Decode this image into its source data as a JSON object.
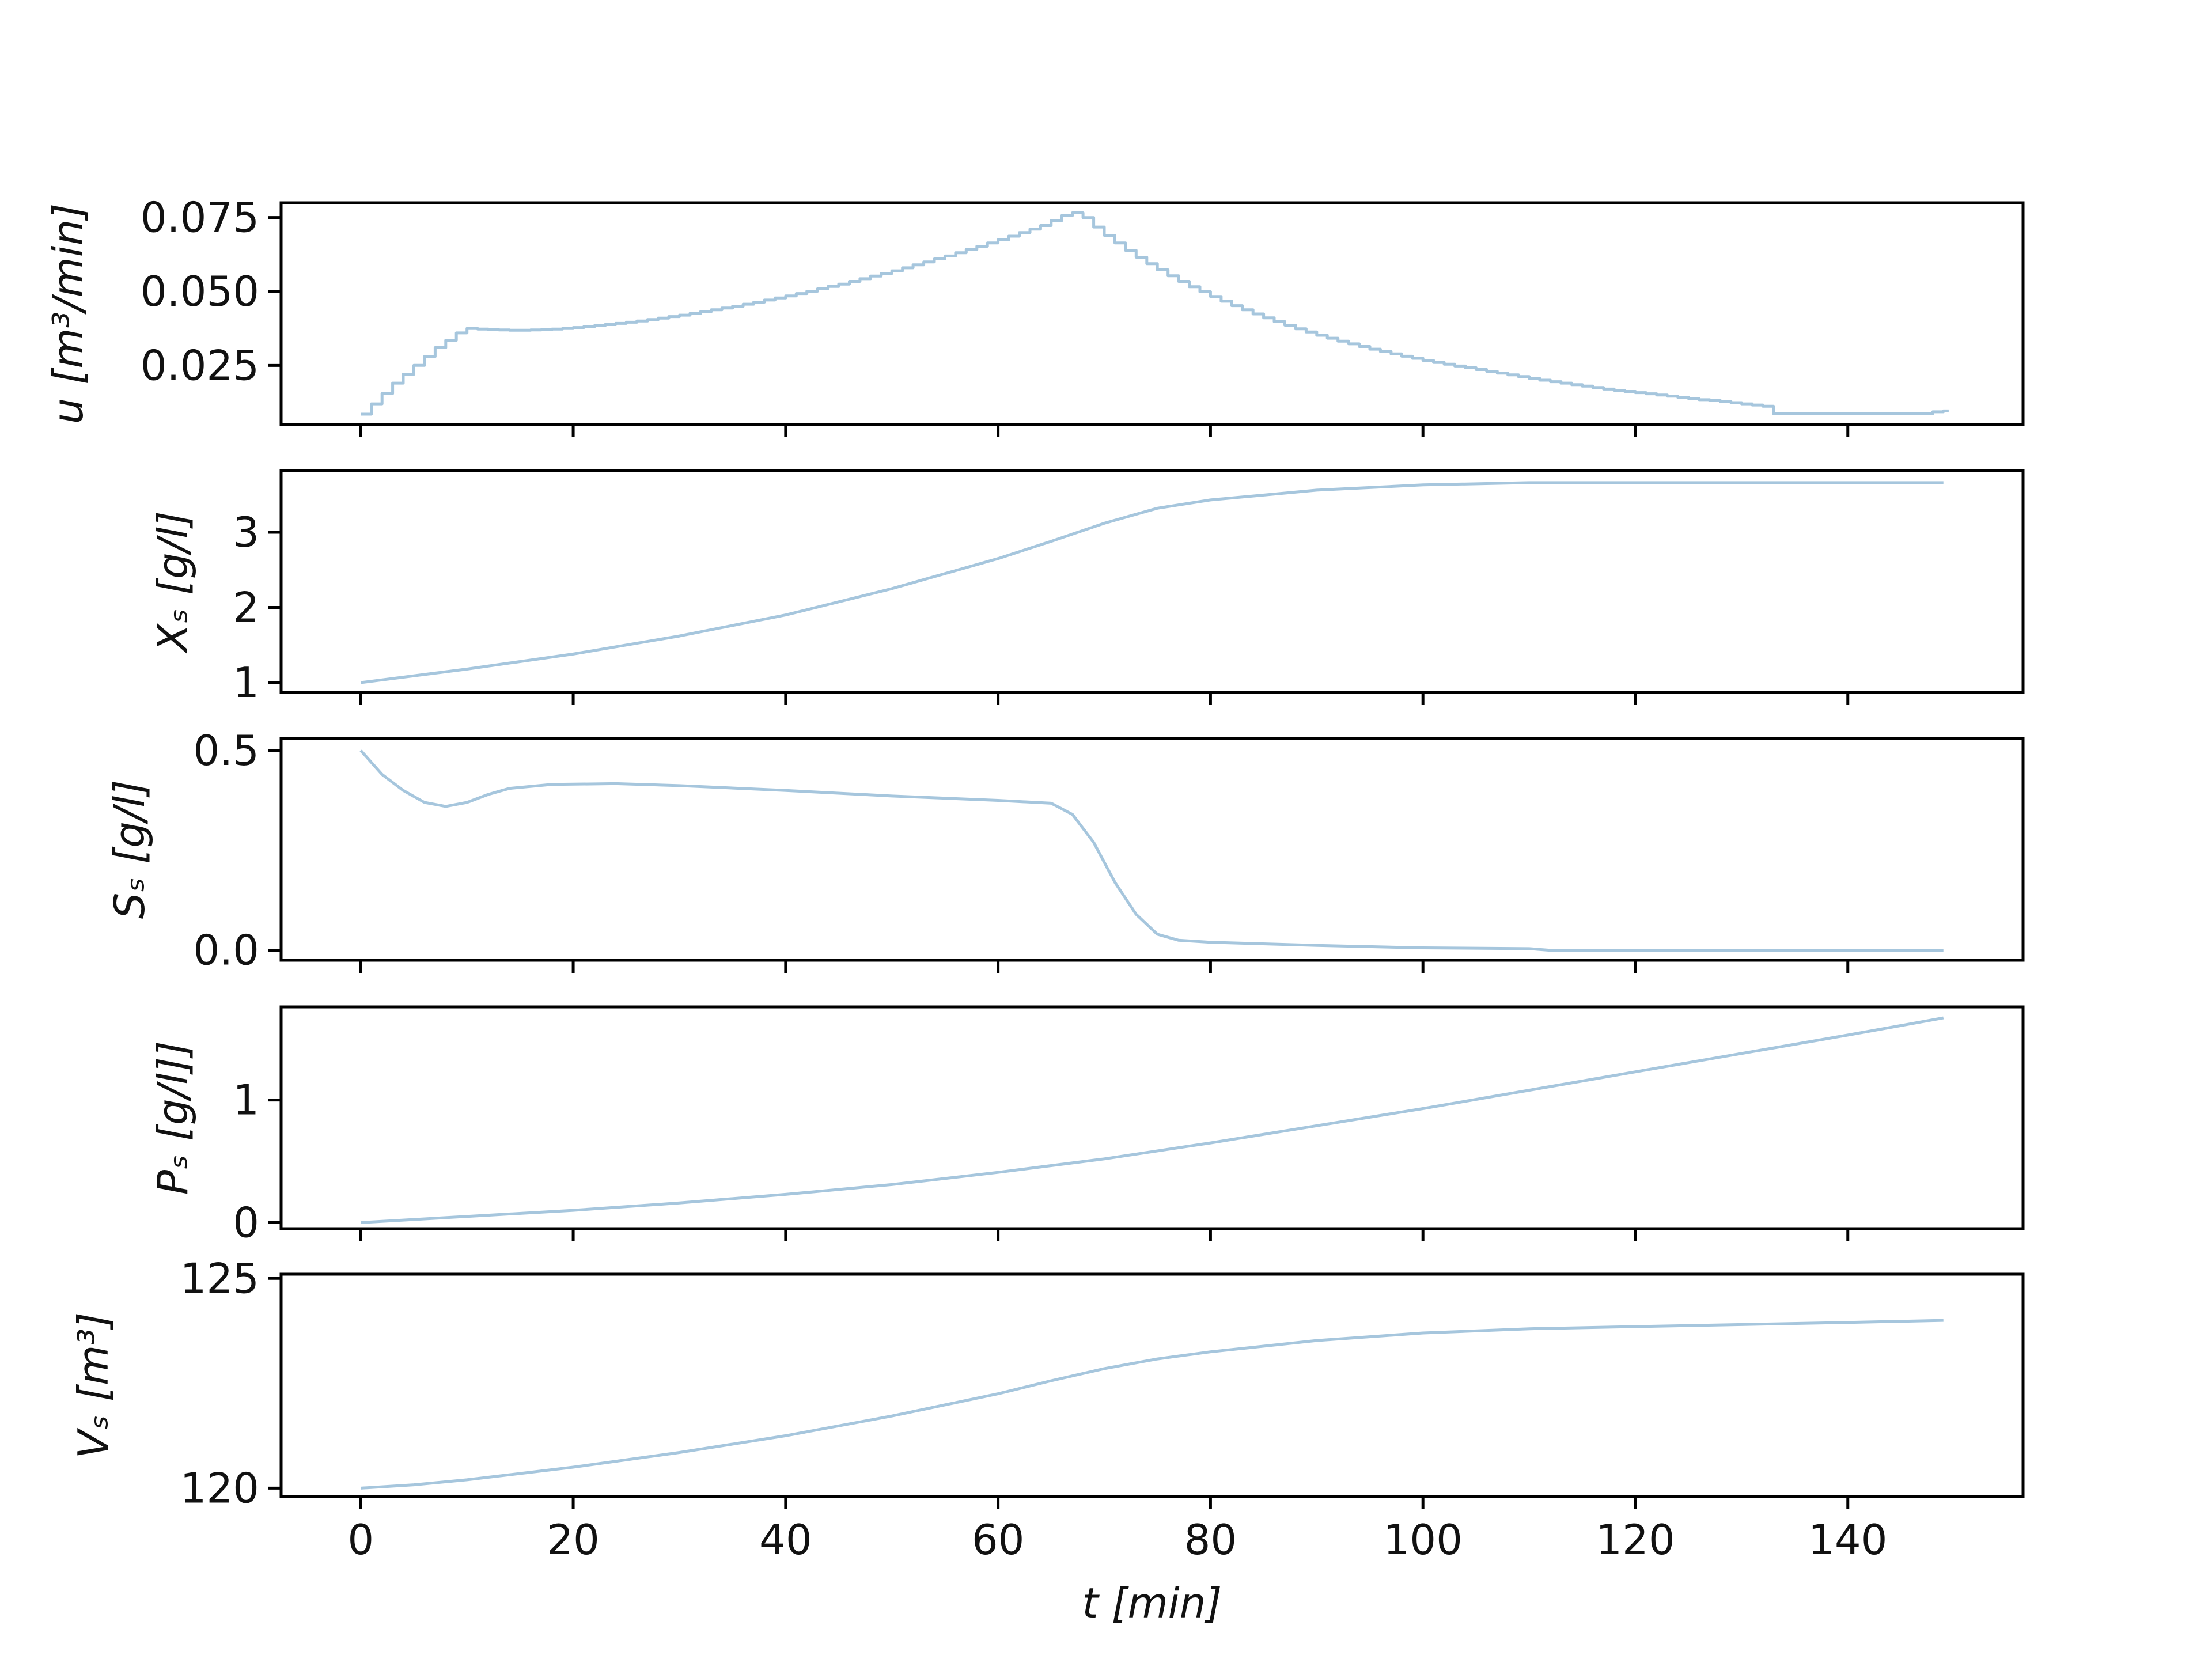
{
  "figure": {
    "line_color": "#a6c6dd",
    "background": "#ffffff",
    "frame_color": "#000000"
  },
  "chart_data": [
    {
      "type": "line",
      "step": true,
      "ylabel": "u [m³/min]",
      "xlim": [
        -7.5,
        156.5
      ],
      "ylim": [
        0.005,
        0.08
      ],
      "yticks": [
        0.025,
        0.05,
        0.075
      ],
      "ytick_labels": [
        "0.025",
        "0.050",
        "0.075"
      ],
      "series": [
        {
          "x": [
            0,
            1,
            2,
            3,
            4,
            5,
            6,
            7,
            8,
            9,
            10,
            11,
            12,
            13,
            14,
            15,
            16,
            17,
            18,
            19,
            20,
            21,
            22,
            23,
            24,
            25,
            26,
            27,
            28,
            29,
            30,
            31,
            32,
            33,
            34,
            35,
            36,
            37,
            38,
            39,
            40,
            41,
            42,
            43,
            44,
            45,
            46,
            47,
            48,
            49,
            50,
            51,
            52,
            53,
            54,
            55,
            56,
            57,
            58,
            59,
            60,
            61,
            62,
            63,
            64,
            65,
            66,
            67,
            68,
            69,
            70,
            71,
            72,
            73,
            74,
            75,
            76,
            77,
            78,
            79,
            80,
            81,
            82,
            83,
            84,
            85,
            86,
            87,
            88,
            89,
            90,
            91,
            92,
            93,
            94,
            95,
            96,
            97,
            98,
            99,
            100,
            101,
            102,
            103,
            104,
            105,
            106,
            107,
            108,
            109,
            110,
            111,
            112,
            113,
            114,
            115,
            116,
            117,
            118,
            119,
            120,
            121,
            122,
            123,
            124,
            125,
            126,
            127,
            128,
            129,
            130,
            131,
            132,
            133,
            134,
            135,
            136,
            137,
            138,
            139,
            140,
            141,
            142,
            143,
            144,
            145,
            146,
            147,
            148,
            149
          ],
          "values": [
            0.0085,
            0.012,
            0.0155,
            0.019,
            0.022,
            0.025,
            0.028,
            0.031,
            0.0335,
            0.036,
            0.0375,
            0.0373,
            0.0371,
            0.037,
            0.0369,
            0.0369,
            0.037,
            0.0371,
            0.0373,
            0.0375,
            0.0378,
            0.0381,
            0.0384,
            0.0388,
            0.0392,
            0.0396,
            0.04,
            0.0405,
            0.041,
            0.0415,
            0.042,
            0.0426,
            0.0432,
            0.0438,
            0.0444,
            0.045,
            0.0457,
            0.0464,
            0.0471,
            0.0478,
            0.0485,
            0.0493,
            0.0501,
            0.0509,
            0.0517,
            0.0525,
            0.0534,
            0.0543,
            0.0552,
            0.0561,
            0.057,
            0.058,
            0.059,
            0.06,
            0.061,
            0.062,
            0.0631,
            0.0642,
            0.0653,
            0.0664,
            0.0675,
            0.0687,
            0.0699,
            0.0711,
            0.0723,
            0.074,
            0.0757,
            0.0766,
            0.075,
            0.0718,
            0.069,
            0.0664,
            0.0639,
            0.0616,
            0.0594,
            0.0573,
            0.0553,
            0.0534,
            0.0516,
            0.0499,
            0.0483,
            0.0467,
            0.0452,
            0.0438,
            0.0424,
            0.0411,
            0.0398,
            0.0386,
            0.0374,
            0.0363,
            0.0352,
            0.0342,
            0.0332,
            0.0323,
            0.0314,
            0.0305,
            0.0297,
            0.0289,
            0.0281,
            0.0274,
            0.0267,
            0.026,
            0.0254,
            0.0248,
            0.0242,
            0.0236,
            0.023,
            0.0224,
            0.0218,
            0.0212,
            0.0206,
            0.02,
            0.0195,
            0.019,
            0.0185,
            0.018,
            0.0175,
            0.017,
            0.0166,
            0.0162,
            0.0158,
            0.0154,
            0.015,
            0.0146,
            0.0142,
            0.0138,
            0.0134,
            0.0131,
            0.0128,
            0.0124,
            0.012,
            0.0116,
            0.0112,
            0.0087,
            0.0086,
            0.0087,
            0.0087,
            0.0086,
            0.0087,
            0.0087,
            0.0086,
            0.0087,
            0.0087,
            0.0087,
            0.0086,
            0.0087,
            0.0087,
            0.0087,
            0.0093,
            0.0096
          ]
        }
      ]
    },
    {
      "type": "line",
      "ylabel": "Xₛ [g/l]",
      "xlim": [
        -7.5,
        156.5
      ],
      "ylim": [
        0.87,
        3.82
      ],
      "yticks": [
        1,
        2,
        3
      ],
      "ytick_labels": [
        "1",
        "2",
        "3"
      ],
      "series": [
        {
          "x": [
            0,
            10,
            20,
            30,
            40,
            50,
            60,
            65,
            70,
            75,
            80,
            90,
            100,
            110,
            120,
            130,
            140,
            149
          ],
          "values": [
            1.0,
            1.18,
            1.38,
            1.62,
            1.9,
            2.25,
            2.65,
            2.88,
            3.12,
            3.32,
            3.43,
            3.56,
            3.63,
            3.66,
            3.66,
            3.66,
            3.66,
            3.66
          ]
        }
      ]
    },
    {
      "type": "line",
      "ylabel": "Sₛ [g/l]",
      "xlim": [
        -7.5,
        156.5
      ],
      "ylim": [
        -0.025,
        0.53
      ],
      "yticks": [
        0,
        0.5
      ],
      "ytick_labels": [
        "0.0",
        "0.5"
      ],
      "series": [
        {
          "x": [
            0,
            2,
            4,
            6,
            8,
            10,
            12,
            14,
            18,
            24,
            30,
            40,
            50,
            60,
            65,
            67,
            69,
            71,
            73,
            75,
            77,
            80,
            90,
            100,
            110,
            112,
            120,
            140,
            149
          ],
          "values": [
            0.5,
            0.44,
            0.4,
            0.37,
            0.36,
            0.37,
            0.39,
            0.405,
            0.415,
            0.417,
            0.412,
            0.4,
            0.386,
            0.375,
            0.368,
            0.34,
            0.27,
            0.17,
            0.09,
            0.04,
            0.025,
            0.02,
            0.012,
            0.006,
            0.004,
            0.0,
            0.0,
            0.0,
            0.0
          ]
        }
      ]
    },
    {
      "type": "line",
      "ylabel": "Pₛ [g/l]]",
      "xlim": [
        -7.5,
        156.5
      ],
      "ylim": [
        -0.05,
        1.76
      ],
      "yticks": [
        0,
        1
      ],
      "ytick_labels": [
        "0",
        "1"
      ],
      "series": [
        {
          "x": [
            0,
            10,
            20,
            30,
            40,
            50,
            60,
            70,
            80,
            90,
            100,
            110,
            120,
            130,
            140,
            149
          ],
          "values": [
            0.0,
            0.05,
            0.1,
            0.16,
            0.23,
            0.31,
            0.41,
            0.52,
            0.65,
            0.79,
            0.93,
            1.08,
            1.23,
            1.38,
            1.53,
            1.67
          ]
        }
      ]
    },
    {
      "type": "line",
      "ylabel": "Vₛ [m³]",
      "xlim": [
        -7.5,
        156.5
      ],
      "ylim": [
        119.8,
        125.1
      ],
      "yticks": [
        120,
        125
      ],
      "ytick_labels": [
        "120",
        "125"
      ],
      "xlabel": "t [min]",
      "xticks": [
        0,
        20,
        40,
        60,
        80,
        100,
        120,
        140
      ],
      "xtick_labels": [
        "0",
        "20",
        "40",
        "60",
        "80",
        "100",
        "120",
        "140"
      ],
      "series": [
        {
          "x": [
            0,
            5,
            10,
            20,
            30,
            40,
            50,
            60,
            65,
            70,
            75,
            80,
            90,
            100,
            110,
            120,
            130,
            140,
            149
          ],
          "values": [
            120.0,
            120.08,
            120.2,
            120.5,
            120.85,
            121.25,
            121.72,
            122.25,
            122.56,
            122.85,
            123.08,
            123.25,
            123.52,
            123.7,
            123.8,
            123.85,
            123.9,
            123.95,
            124.0
          ]
        }
      ]
    }
  ]
}
